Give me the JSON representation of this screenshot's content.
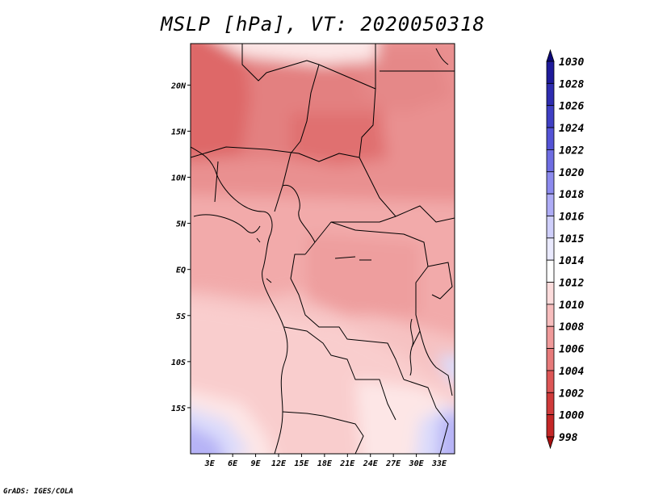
{
  "title": "MSLP [hPa], VT: 2020050318",
  "footer": "GrADS: IGES/COLA",
  "map": {
    "lat_labels": [
      {
        "label": "20N",
        "lat": 20
      },
      {
        "label": "15N",
        "lat": 15
      },
      {
        "label": "10N",
        "lat": 10
      },
      {
        "label": "5N",
        "lat": 5
      },
      {
        "label": "EQ",
        "lat": 0
      },
      {
        "label": "5S",
        "lat": -5
      },
      {
        "label": "10S",
        "lat": -10
      },
      {
        "label": "15S",
        "lat": -15
      }
    ],
    "lon_labels": [
      {
        "label": "3E",
        "lon": 3
      },
      {
        "label": "6E",
        "lon": 6
      },
      {
        "label": "9E",
        "lon": 9
      },
      {
        "label": "12E",
        "lon": 12
      },
      {
        "label": "15E",
        "lon": 15
      },
      {
        "label": "18E",
        "lon": 18
      },
      {
        "label": "21E",
        "lon": 21
      },
      {
        "label": "24E",
        "lon": 24
      },
      {
        "label": "27E",
        "lon": 27
      },
      {
        "label": "30E",
        "lon": 30
      },
      {
        "label": "33E",
        "lon": 33
      }
    ],
    "lon_range": [
      0.5,
      35
    ],
    "lat_range": [
      -20,
      24.5
    ]
  },
  "colorbar": {
    "levels": [
      "1030",
      "1028",
      "1026",
      "1024",
      "1022",
      "1020",
      "1018",
      "1016",
      "1015",
      "1014",
      "1012",
      "1010",
      "1008",
      "1006",
      "1004",
      "1002",
      "1000",
      "998"
    ],
    "colors": [
      "#0c0878",
      "#1e1a9a",
      "#2e2cb0",
      "#3f3fc4",
      "#5453d6",
      "#6e6de2",
      "#8c8aee",
      "#aeacf6",
      "#cfcffb",
      "#eaeafe",
      "#ffffff",
      "#fcdcdc",
      "#f7bdbd",
      "#f09a9a",
      "#e77a7a",
      "#dd5656",
      "#cf3a3a",
      "#c42727",
      "#a80f0f"
    ]
  }
}
